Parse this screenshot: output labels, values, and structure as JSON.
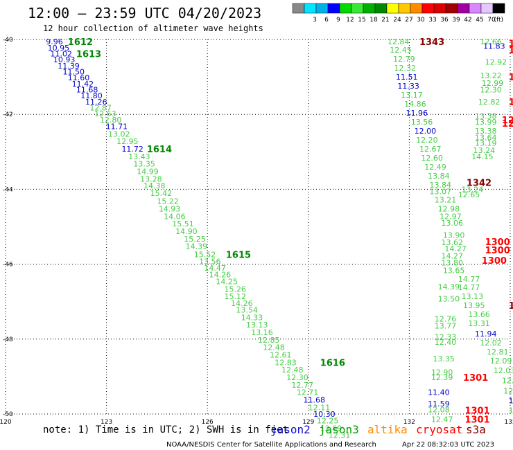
{
  "header": {
    "title": "12:00 — 23:59 UTC 04/20/2023",
    "subtitle": "12 hour collection of altimeter wave heights"
  },
  "colorbar": {
    "colors": [
      "#888888",
      "#00e4ff",
      "#00b0e8",
      "#0000ff",
      "#00d800",
      "#38e838",
      "#00b000",
      "#008800",
      "#ffff00",
      "#ffc800",
      "#ff8c00",
      "#ff0000",
      "#d80000",
      "#a00000",
      "#a000a0",
      "#d888ff",
      "#e6c8ff",
      "#000000"
    ],
    "labels": [
      "3",
      "6",
      "9",
      "12",
      "15",
      "18",
      "21",
      "24",
      "27",
      "30",
      "33",
      "36",
      "39",
      "42",
      "45",
      "70"
    ],
    "unit": "(ft)"
  },
  "note": "note:  1) Time is in UTC; 2) SWH is in feet",
  "legend": [
    {
      "name": "jason2",
      "color": "#1010d8"
    },
    {
      "name": "jason3",
      "color": "#00a000"
    },
    {
      "name": "altika",
      "color": "#ff8c00"
    },
    {
      "name": "cryosat",
      "color": "#ff0000"
    },
    {
      "name": "s3a",
      "color": "#880000"
    }
  ],
  "credit": "NOAA/NESDIS Center for Satellite Applications and Research",
  "timestamp": "Apr 22 08:32:03 UTC 2023",
  "chart_data": {
    "type": "scatter",
    "title": "12:00 — 23:59 UTC 04/20/2023",
    "subtitle": "12 hour collection of altimeter wave heights",
    "xlim": [
      120,
      135
    ],
    "ylim": [
      -50,
      -40
    ],
    "x_ticks": [
      120,
      123,
      126,
      129,
      132,
      135
    ],
    "y_ticks": [
      -40,
      -42,
      -44,
      -46,
      -48,
      -50
    ],
    "grid": true,
    "points": [
      {
        "x": 121.2,
        "y": -40.06,
        "v": "9.96",
        "c": "#0000d0"
      },
      {
        "x": 121.25,
        "y": -40.22,
        "v": "10.95",
        "c": "#0000d0"
      },
      {
        "x": 121.33,
        "y": -40.38,
        "v": "11.02",
        "c": "#0000d0"
      },
      {
        "x": 121.42,
        "y": -40.54,
        "v": "10.93",
        "c": "#0000d0"
      },
      {
        "x": 121.55,
        "y": -40.7,
        "v": "11.39",
        "c": "#0000d0"
      },
      {
        "x": 121.7,
        "y": -40.86,
        "v": "11.50",
        "c": "#0000d0"
      },
      {
        "x": 121.85,
        "y": -41.02,
        "v": "11.60",
        "c": "#0000d0"
      },
      {
        "x": 121.97,
        "y": -41.18,
        "v": "11.42",
        "c": "#0000d0"
      },
      {
        "x": 122.1,
        "y": -41.34,
        "v": "11.68",
        "c": "#0000d0"
      },
      {
        "x": 122.23,
        "y": -41.5,
        "v": "11.80",
        "c": "#0000d0"
      },
      {
        "x": 122.37,
        "y": -41.66,
        "v": "11.26",
        "c": "#0000d0"
      },
      {
        "x": 122.5,
        "y": -41.82,
        "v": "12.87",
        "c": "#44cc44"
      },
      {
        "x": 122.64,
        "y": -41.98,
        "v": "12.63",
        "c": "#44cc44"
      },
      {
        "x": 122.8,
        "y": -42.14,
        "v": "12.80",
        "c": "#44cc44"
      },
      {
        "x": 122.98,
        "y": -42.32,
        "v": "11.71",
        "c": "#0000d0"
      },
      {
        "x": 123.05,
        "y": -42.52,
        "v": "13.02",
        "c": "#44cc44"
      },
      {
        "x": 123.3,
        "y": -42.72,
        "v": "12.95",
        "c": "#44cc44"
      },
      {
        "x": 123.45,
        "y": -42.92,
        "v": "11.72",
        "c": "#0000d0"
      },
      {
        "x": 123.65,
        "y": -43.12,
        "v": "13.43",
        "c": "#44cc44"
      },
      {
        "x": 123.8,
        "y": -43.32,
        "v": "13.35",
        "c": "#44cc44"
      },
      {
        "x": 123.9,
        "y": -43.52,
        "v": "14.99",
        "c": "#44cc44"
      },
      {
        "x": 124.0,
        "y": -43.72,
        "v": "13.28",
        "c": "#44cc44"
      },
      {
        "x": 124.1,
        "y": -43.9,
        "v": "14.38",
        "c": "#44cc44"
      },
      {
        "x": 124.3,
        "y": -44.1,
        "v": "15.42",
        "c": "#44cc44"
      },
      {
        "x": 124.5,
        "y": -44.32,
        "v": "15.22",
        "c": "#44cc44"
      },
      {
        "x": 124.55,
        "y": -44.52,
        "v": "14.93",
        "c": "#44cc44"
      },
      {
        "x": 124.7,
        "y": -44.72,
        "v": "14.06",
        "c": "#44cc44"
      },
      {
        "x": 124.95,
        "y": -44.92,
        "v": "15.51",
        "c": "#44cc44"
      },
      {
        "x": 125.05,
        "y": -45.12,
        "v": "14.90",
        "c": "#44cc44"
      },
      {
        "x": 125.3,
        "y": -45.32,
        "v": "15.25",
        "c": "#44cc44"
      },
      {
        "x": 125.35,
        "y": -45.52,
        "v": "14.39",
        "c": "#44cc44"
      },
      {
        "x": 125.6,
        "y": -45.74,
        "v": "15.52",
        "c": "#44cc44"
      },
      {
        "x": 125.75,
        "y": -45.92,
        "v": "13.56",
        "c": "#44cc44"
      },
      {
        "x": 125.9,
        "y": -46.1,
        "v": "14.47",
        "c": "#44cc44"
      },
      {
        "x": 126.05,
        "y": -46.28,
        "v": "14.26",
        "c": "#44cc44"
      },
      {
        "x": 126.25,
        "y": -46.46,
        "v": "14.25",
        "c": "#44cc44"
      },
      {
        "x": 126.5,
        "y": -46.66,
        "v": "15.26",
        "c": "#44cc44"
      },
      {
        "x": 126.5,
        "y": -46.86,
        "v": "15.12",
        "c": "#44cc44"
      },
      {
        "x": 126.7,
        "y": -47.04,
        "v": "14.26",
        "c": "#44cc44"
      },
      {
        "x": 126.85,
        "y": -47.22,
        "v": "13.54",
        "c": "#44cc44"
      },
      {
        "x": 127.0,
        "y": -47.42,
        "v": "14.33",
        "c": "#44cc44"
      },
      {
        "x": 127.15,
        "y": -47.62,
        "v": "13.13",
        "c": "#44cc44"
      },
      {
        "x": 127.3,
        "y": -47.82,
        "v": "13.16",
        "c": "#44cc44"
      },
      {
        "x": 127.5,
        "y": -48.02,
        "v": "12.85",
        "c": "#44cc44"
      },
      {
        "x": 127.65,
        "y": -48.22,
        "v": "12.48",
        "c": "#44cc44"
      },
      {
        "x": 127.85,
        "y": -48.42,
        "v": "12.61",
        "c": "#44cc44"
      },
      {
        "x": 128.0,
        "y": -48.62,
        "v": "12.83",
        "c": "#44cc44"
      },
      {
        "x": 128.2,
        "y": -48.82,
        "v": "12.48",
        "c": "#44cc44"
      },
      {
        "x": 128.35,
        "y": -49.02,
        "v": "12.30",
        "c": "#44cc44"
      },
      {
        "x": 128.5,
        "y": -49.22,
        "v": "12.77",
        "c": "#44cc44"
      },
      {
        "x": 128.65,
        "y": -49.42,
        "v": "12.71",
        "c": "#44cc44"
      },
      {
        "x": 128.85,
        "y": -49.62,
        "v": "11.68",
        "c": "#0000d0"
      },
      {
        "x": 129.0,
        "y": -49.82,
        "v": "12.11",
        "c": "#44cc44"
      },
      {
        "x": 129.15,
        "y": -50.0,
        "v": "10.30",
        "c": "#0000d0"
      },
      {
        "x": 129.25,
        "y": -50.18,
        "v": "12.25",
        "c": "#44cc44"
      },
      {
        "x": 129.35,
        "y": -50.38,
        "v": "12.69",
        "c": "#44cc44"
      },
      {
        "x": 129.6,
        "y": -50.56,
        "v": "12.31",
        "c": "#44cc44"
      },
      {
        "x": 131.35,
        "y": -40.06,
        "v": "12.84",
        "c": "#44cc44"
      },
      {
        "x": 131.42,
        "y": -40.28,
        "v": "12.45",
        "c": "#44cc44"
      },
      {
        "x": 131.52,
        "y": -40.52,
        "v": "12.79",
        "c": "#44cc44"
      },
      {
        "x": 131.55,
        "y": -40.76,
        "v": "12.32",
        "c": "#44cc44"
      },
      {
        "x": 131.6,
        "y": -41.0,
        "v": "11.51",
        "c": "#0000d0"
      },
      {
        "x": 131.65,
        "y": -41.24,
        "v": "11.33",
        "c": "#0000d0"
      },
      {
        "x": 131.75,
        "y": -41.48,
        "v": "13.17",
        "c": "#44cc44"
      },
      {
        "x": 131.85,
        "y": -41.72,
        "v": "14.86",
        "c": "#44cc44"
      },
      {
        "x": 131.9,
        "y": -41.96,
        "v": "11.96",
        "c": "#0000d0"
      },
      {
        "x": 132.05,
        "y": -42.2,
        "v": "13.56",
        "c": "#44cc44"
      },
      {
        "x": 132.15,
        "y": -42.44,
        "v": "12.00",
        "c": "#0000d0"
      },
      {
        "x": 132.2,
        "y": -42.68,
        "v": "12.20",
        "c": "#44cc44"
      },
      {
        "x": 132.3,
        "y": -42.92,
        "v": "12.67",
        "c": "#44cc44"
      },
      {
        "x": 132.35,
        "y": -43.16,
        "v": "12.60",
        "c": "#44cc44"
      },
      {
        "x": 132.45,
        "y": -43.4,
        "v": "12.49",
        "c": "#44cc44"
      },
      {
        "x": 132.55,
        "y": -43.64,
        "v": "13.84",
        "c": "#44cc44"
      },
      {
        "x": 132.6,
        "y": -43.88,
        "v": "13.84",
        "c": "#44cc44"
      },
      {
        "x": 132.6,
        "y": -44.06,
        "v": "13.07",
        "c": "#44cc44"
      },
      {
        "x": 132.75,
        "y": -44.28,
        "v": "13.21",
        "c": "#44cc44"
      },
      {
        "x": 132.85,
        "y": -44.52,
        "v": "12.98",
        "c": "#44cc44"
      },
      {
        "x": 132.9,
        "y": -44.72,
        "v": "12.97",
        "c": "#44cc44"
      },
      {
        "x": 132.95,
        "y": -44.9,
        "v": "13.06",
        "c": "#44cc44"
      },
      {
        "x": 133.0,
        "y": -45.22,
        "v": "13.90",
        "c": "#44cc44"
      },
      {
        "x": 132.95,
        "y": -45.42,
        "v": "13.62",
        "c": "#44cc44"
      },
      {
        "x": 133.05,
        "y": -45.58,
        "v": "14.27",
        "c": "#44cc44"
      },
      {
        "x": 132.95,
        "y": -45.78,
        "v": "14.27",
        "c": "#44cc44"
      },
      {
        "x": 132.95,
        "y": -45.96,
        "v": "13.80",
        "c": "#44cc44"
      },
      {
        "x": 133.0,
        "y": -46.16,
        "v": "13.65",
        "c": "#44cc44"
      },
      {
        "x": 133.45,
        "y": -46.4,
        "v": "14.77",
        "c": "#44cc44"
      },
      {
        "x": 132.85,
        "y": -46.6,
        "v": "14.39",
        "c": "#44cc44"
      },
      {
        "x": 133.45,
        "y": -46.62,
        "v": "14.77",
        "c": "#44cc44"
      },
      {
        "x": 132.85,
        "y": -46.92,
        "v": "13.50",
        "c": "#44cc44"
      },
      {
        "x": 133.55,
        "y": -46.86,
        "v": "13.13",
        "c": "#44cc44"
      },
      {
        "x": 133.6,
        "y": -47.1,
        "v": "13.95",
        "c": "#44cc44"
      },
      {
        "x": 133.75,
        "y": -47.34,
        "v": "13.66",
        "c": "#44cc44"
      },
      {
        "x": 132.75,
        "y": -47.46,
        "v": "12.76",
        "c": "#44cc44"
      },
      {
        "x": 133.75,
        "y": -47.58,
        "v": "13.31",
        "c": "#44cc44"
      },
      {
        "x": 132.75,
        "y": -47.64,
        "v": "13.77",
        "c": "#44cc44"
      },
      {
        "x": 133.95,
        "y": -47.86,
        "v": "11.94",
        "c": "#0000d0"
      },
      {
        "x": 132.75,
        "y": -47.94,
        "v": "12.33",
        "c": "#44cc44"
      },
      {
        "x": 132.75,
        "y": -48.08,
        "v": "12.40",
        "c": "#44cc44"
      },
      {
        "x": 134.1,
        "y": -48.1,
        "v": "12.02",
        "c": "#44cc44"
      },
      {
        "x": 134.3,
        "y": -48.34,
        "v": "12.81",
        "c": "#44cc44"
      },
      {
        "x": 132.7,
        "y": -48.52,
        "v": "13.35",
        "c": "#44cc44"
      },
      {
        "x": 134.4,
        "y": -48.58,
        "v": "12.09",
        "c": "#44cc44"
      },
      {
        "x": 132.65,
        "y": -48.88,
        "v": "12.90",
        "c": "#44cc44"
      },
      {
        "x": 132.65,
        "y": -49.02,
        "v": "12.39",
        "c": "#44cc44"
      },
      {
        "x": 134.5,
        "y": -48.84,
        "v": "12.03",
        "c": "#44cc44"
      },
      {
        "x": 134.75,
        "y": -49.1,
        "v": "12.36",
        "c": "#44cc44"
      },
      {
        "x": 132.55,
        "y": -49.42,
        "v": "11.40",
        "c": "#0000d0"
      },
      {
        "x": 134.8,
        "y": -49.38,
        "v": "12.43",
        "c": "#44cc44"
      },
      {
        "x": 134.95,
        "y": -49.64,
        "v": "11.65",
        "c": "#0000d0"
      },
      {
        "x": 132.55,
        "y": -49.72,
        "v": "11.59",
        "c": "#0000d0"
      },
      {
        "x": 132.55,
        "y": -49.88,
        "v": "12.08",
        "c": "#44cc44"
      },
      {
        "x": 134.95,
        "y": -49.9,
        "v": "12.43",
        "c": "#44cc44"
      },
      {
        "x": 132.65,
        "y": -50.14,
        "v": "12.47",
        "c": "#44cc44"
      },
      {
        "x": 134.1,
        "y": -40.06,
        "v": "12.66",
        "c": "#44cc44"
      },
      {
        "x": 134.2,
        "y": -40.18,
        "v": "11.83",
        "c": "#0000d0"
      },
      {
        "x": 134.25,
        "y": -40.6,
        "v": "12.92",
        "c": "#44cc44"
      },
      {
        "x": 134.1,
        "y": -40.96,
        "v": "13.22",
        "c": "#44cc44"
      },
      {
        "x": 134.15,
        "y": -41.16,
        "v": "12.99",
        "c": "#44cc44"
      },
      {
        "x": 134.1,
        "y": -41.34,
        "v": "12.30",
        "c": "#44cc44"
      },
      {
        "x": 134.05,
        "y": -41.66,
        "v": "12.82",
        "c": "#44cc44"
      },
      {
        "x": 133.95,
        "y": -42.04,
        "v": "13.38",
        "c": "#44cc44"
      },
      {
        "x": 133.95,
        "y": -42.2,
        "v": "13.99",
        "c": "#44cc44"
      },
      {
        "x": 133.95,
        "y": -42.44,
        "v": "13.38",
        "c": "#44cc44"
      },
      {
        "x": 133.95,
        "y": -42.62,
        "v": "13.64",
        "c": "#44cc44"
      },
      {
        "x": 133.95,
        "y": -42.76,
        "v": "13.19",
        "c": "#44cc44"
      },
      {
        "x": 133.9,
        "y": -42.96,
        "v": "13.24",
        "c": "#44cc44"
      },
      {
        "x": 133.85,
        "y": -43.12,
        "v": "14.15",
        "c": "#44cc44"
      },
      {
        "x": 133.55,
        "y": -44.0,
        "v": "13.24",
        "c": "#44cc44"
      },
      {
        "x": 133.45,
        "y": -44.14,
        "v": "12.65",
        "c": "#44cc44"
      }
    ],
    "track_labels": [
      {
        "x": 121.85,
        "y": -40.06,
        "v": "1612",
        "c": "#008800"
      },
      {
        "x": 122.1,
        "y": -40.38,
        "v": "1613",
        "c": "#008800"
      },
      {
        "x": 124.2,
        "y": -42.92,
        "v": "1614",
        "c": "#008800"
      },
      {
        "x": 126.55,
        "y": -45.74,
        "v": "1615",
        "c": "#008800"
      },
      {
        "x": 129.35,
        "y": -48.62,
        "v": "1616",
        "c": "#008800"
      },
      {
        "x": 132.3,
        "y": -40.06,
        "v": "1343",
        "c": "#880000"
      },
      {
        "x": 133.7,
        "y": -43.82,
        "v": "1342",
        "c": "#880000"
      },
      {
        "x": 134.95,
        "y": -47.1,
        "v": "134",
        "c": "#880000"
      },
      {
        "x": 134.95,
        "y": -40.1,
        "v": "1257",
        "c": "#ff0000"
      },
      {
        "x": 134.95,
        "y": -40.28,
        "v": "1260",
        "c": "#ff0000"
      },
      {
        "x": 134.95,
        "y": -41.0,
        "v": "1258",
        "c": "#ff0000"
      },
      {
        "x": 134.95,
        "y": -41.66,
        "v": "1259",
        "c": "#ff0000"
      },
      {
        "x": 134.75,
        "y": -42.14,
        "v": "1256",
        "c": "#ff0000"
      },
      {
        "x": 134.75,
        "y": -42.24,
        "v": "1269",
        "c": "#ff0000"
      },
      {
        "x": 134.25,
        "y": -45.4,
        "v": "1300",
        "c": "#ff0000"
      },
      {
        "x": 134.25,
        "y": -45.62,
        "v": "1300",
        "c": "#ff0000"
      },
      {
        "x": 134.15,
        "y": -45.9,
        "v": "1300",
        "c": "#ff0000"
      },
      {
        "x": 133.6,
        "y": -49.02,
        "v": "1301",
        "c": "#ff0000"
      },
      {
        "x": 133.65,
        "y": -49.9,
        "v": "1301",
        "c": "#ff0000"
      },
      {
        "x": 133.65,
        "y": -50.14,
        "v": "1301",
        "c": "#ff0000"
      }
    ]
  }
}
